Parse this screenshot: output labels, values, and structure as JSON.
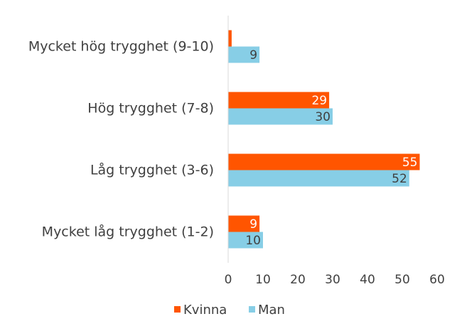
{
  "chart_data": {
    "type": "bar",
    "orientation": "horizontal",
    "title": "",
    "xlabel": "",
    "ylabel": "",
    "categories": [
      "Mycket hög trygghet (9-10)",
      "Hög trygghet (7-8)",
      "Låg trygghet (3-6)",
      "Mycket låg trygghet (1-2)"
    ],
    "series": [
      {
        "name": "Kvinna",
        "color": "#FF5500",
        "values": [
          1,
          29,
          55,
          9
        ],
        "labels": [
          "",
          "29",
          "55",
          "9"
        ],
        "label_color": "#ffffff"
      },
      {
        "name": "Man",
        "color": "#87CEE6",
        "values": [
          9,
          30,
          52,
          10
        ],
        "labels": [
          "9",
          "30",
          "52",
          "10"
        ],
        "label_color": "#404040"
      }
    ],
    "xlim": [
      0,
      60
    ],
    "xticks": [
      "0",
      "10",
      "20",
      "30",
      "40",
      "50",
      "60"
    ],
    "grid": false,
    "legend": "bottom"
  }
}
